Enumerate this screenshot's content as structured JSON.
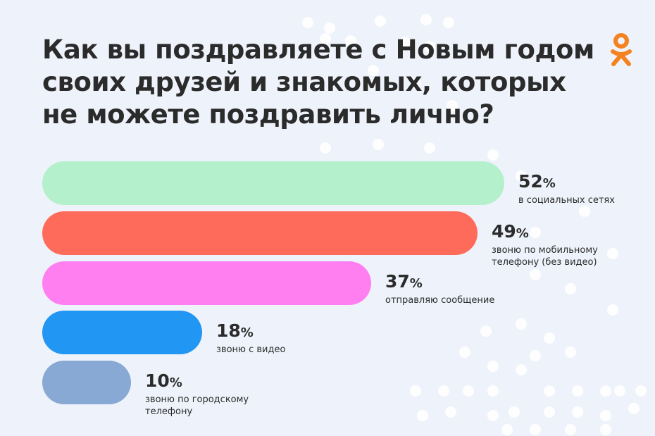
{
  "title_lines": [
    "Как вы поздравляете с Новым годом",
    "своих друзей и знакомых, которых",
    "не можете поздравить лично?"
  ],
  "logo": {
    "name": "ok-logo",
    "color": "#f58220"
  },
  "colors": {
    "background": "#eef3fb",
    "text": "#2b2b2b",
    "dots": "#ffffff"
  },
  "chart_data": {
    "type": "bar",
    "orientation": "horizontal",
    "title": "Как вы поздравляете с Новым годом своих друзей и знакомых, которых не можете поздравить лично?",
    "unit": "%",
    "categories": [
      "в социальных сетях",
      "звоню по мобильному телефону (без видео)",
      "отправляю сообщение",
      "звоню с видео",
      "звоню по городскому телефону"
    ],
    "values": [
      52,
      49,
      37,
      18,
      10
    ],
    "value_numbers": [
      "52",
      "49",
      "37",
      "18",
      "10"
    ],
    "value_suffix": "%",
    "label_lines": [
      [
        "в социальных сетях"
      ],
      [
        "звоню по мобильному",
        "телефону (без видео)"
      ],
      [
        "отправляю сообщение"
      ],
      [
        "звоню с видео"
      ],
      [
        "звоню по городскому",
        "телефону"
      ]
    ],
    "bar_colors": [
      "#b4f0cc",
      "#ff6b5b",
      "#ff7ff0",
      "#2196f3",
      "#87a9d3"
    ],
    "xlim": [
      0,
      52
    ],
    "grid": false,
    "legend": "none"
  }
}
